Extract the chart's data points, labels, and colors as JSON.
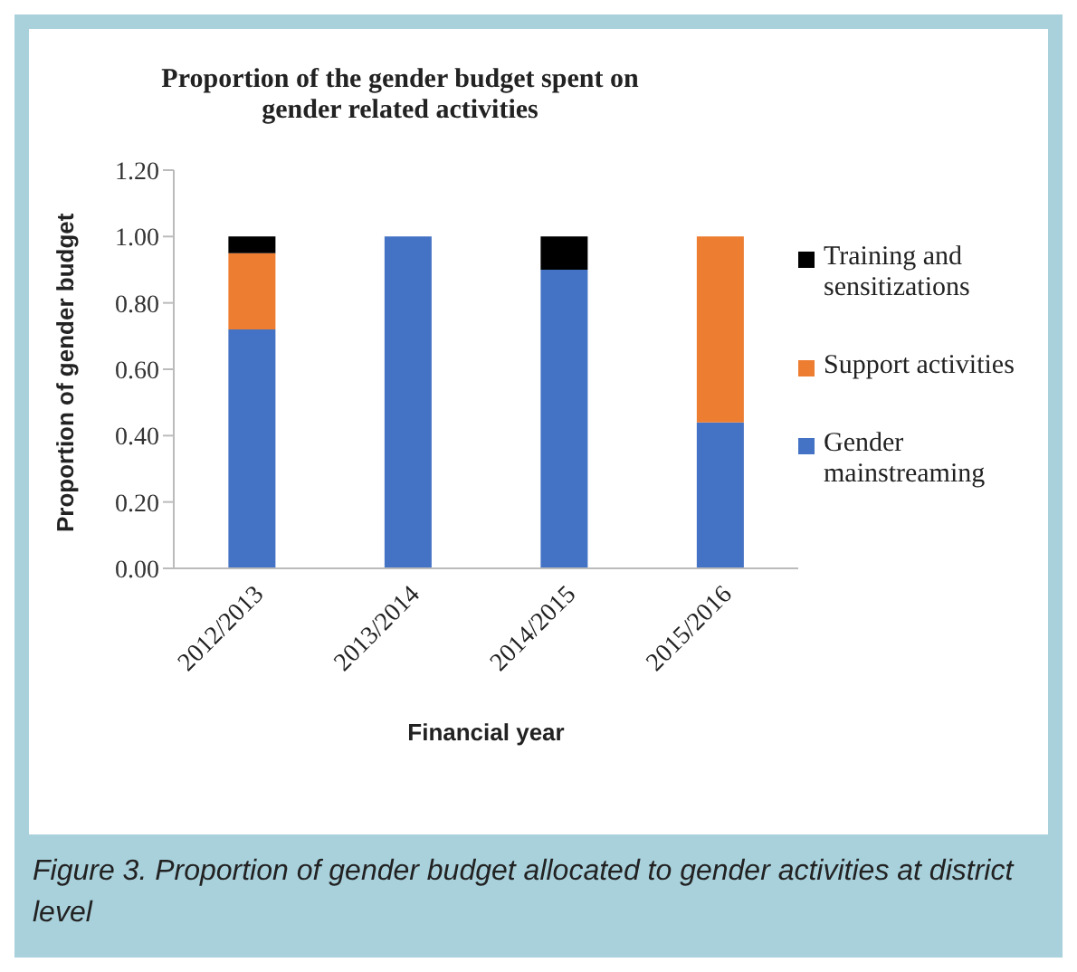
{
  "chart_data": {
    "type": "bar",
    "stacked": true,
    "title": "Proportion of the gender budget spent on gender related activities",
    "xlabel": "Financial year",
    "ylabel": "Proportion of gender budget",
    "categories": [
      "2012/2013",
      "2013/2014",
      "2014/2015",
      "2015/2016"
    ],
    "series": [
      {
        "name": "Gender mainstreaming",
        "color": "#4472c4",
        "values": [
          0.72,
          1.0,
          0.9,
          0.44
        ]
      },
      {
        "name": "Support activities",
        "color": "#ed7d31",
        "values": [
          0.23,
          0,
          0,
          0.56
        ]
      },
      {
        "name": "Training and sensitizations",
        "color": "#000000",
        "values": [
          0.05,
          0,
          0.1,
          0
        ]
      }
    ],
    "ylim": [
      0,
      1.2
    ],
    "yticks": [
      {
        "value": 0,
        "label": "0.00"
      },
      {
        "value": 0.2,
        "label": "0.20"
      },
      {
        "value": 0.4,
        "label": "0.40"
      },
      {
        "value": 0.6,
        "label": "0.60"
      },
      {
        "value": 0.8,
        "label": "0.80"
      },
      {
        "value": 1.0,
        "label": "1.00"
      },
      {
        "value": 1.2,
        "label": "1.20"
      }
    ],
    "grid": false,
    "legend": "right",
    "annotations": [
      "Figure 3. Proportion of gender budget allocated to gender activities at district level"
    ]
  }
}
